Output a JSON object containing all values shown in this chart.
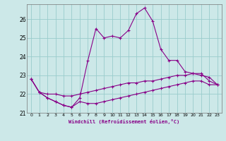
{
  "xlabel": "Windchill (Refroidissement éolien,°C)",
  "bg_color": "#cce8e8",
  "line_color": "#880088",
  "grid_color": "#99cccc",
  "xlim": [
    -0.5,
    23.5
  ],
  "ylim": [
    21.0,
    26.8
  ],
  "yticks": [
    21,
    22,
    23,
    24,
    25,
    26
  ],
  "xticks": [
    0,
    1,
    2,
    3,
    4,
    5,
    6,
    7,
    8,
    9,
    10,
    11,
    12,
    13,
    14,
    15,
    16,
    17,
    18,
    19,
    20,
    21,
    22,
    23
  ],
  "series1_x": [
    0,
    1,
    2,
    3,
    4,
    5,
    6,
    7,
    8,
    9,
    10,
    11,
    12,
    13,
    14,
    15,
    16,
    17,
    18,
    19,
    20,
    21,
    22,
    23
  ],
  "series1_y": [
    22.8,
    22.1,
    21.8,
    21.6,
    21.4,
    21.3,
    21.8,
    23.8,
    25.5,
    25.0,
    25.1,
    25.0,
    25.4,
    26.3,
    26.6,
    25.9,
    24.4,
    23.8,
    23.8,
    23.2,
    23.1,
    23.0,
    22.9,
    22.5
  ],
  "series2_x": [
    0,
    1,
    2,
    3,
    4,
    5,
    6,
    7,
    8,
    9,
    10,
    11,
    12,
    13,
    14,
    15,
    16,
    17,
    18,
    19,
    20,
    21,
    22,
    23
  ],
  "series2_y": [
    22.8,
    22.1,
    22.0,
    22.0,
    21.9,
    21.9,
    22.0,
    22.1,
    22.2,
    22.3,
    22.4,
    22.5,
    22.6,
    22.6,
    22.7,
    22.7,
    22.8,
    22.9,
    23.0,
    23.0,
    23.1,
    23.1,
    22.7,
    22.5
  ],
  "series3_x": [
    0,
    1,
    2,
    3,
    4,
    5,
    6,
    7,
    8,
    9,
    10,
    11,
    12,
    13,
    14,
    15,
    16,
    17,
    18,
    19,
    20,
    21,
    22,
    23
  ],
  "series3_y": [
    22.8,
    22.1,
    21.8,
    21.6,
    21.4,
    21.3,
    21.6,
    21.5,
    21.5,
    21.6,
    21.7,
    21.8,
    21.9,
    22.0,
    22.1,
    22.2,
    22.3,
    22.4,
    22.5,
    22.6,
    22.7,
    22.7,
    22.5,
    22.5
  ]
}
